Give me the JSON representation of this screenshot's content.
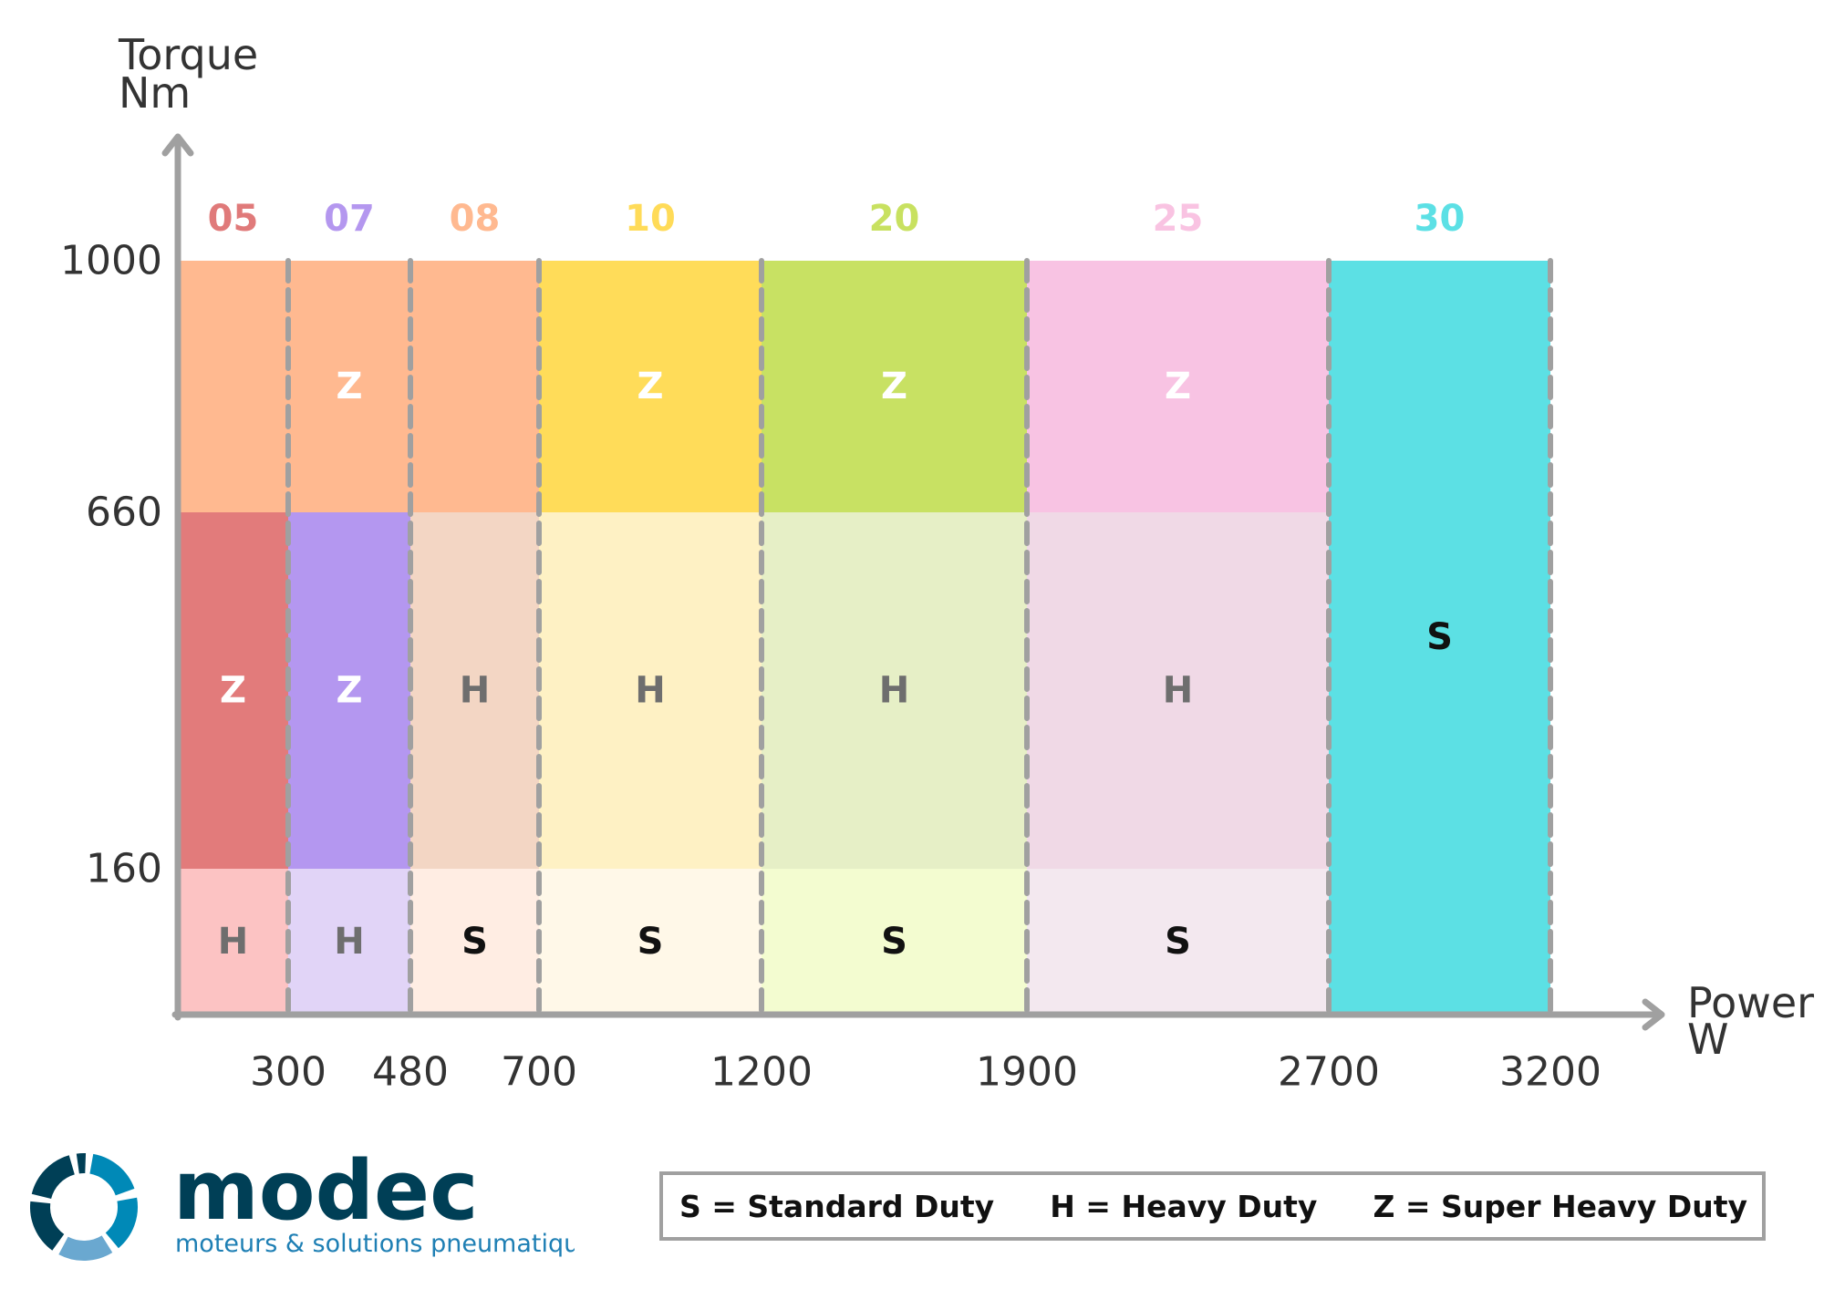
{
  "chart_data": {
    "type": "heatmap",
    "ylabel": [
      "Torque",
      "Nm"
    ],
    "xlabel": [
      "Power",
      "W"
    ],
    "x_ticks": [
      300,
      480,
      700,
      1200,
      1900,
      2700,
      3200
    ],
    "y_ticks": [
      160,
      660,
      1000
    ],
    "colors": {
      "axis": "#a0a0a0",
      "divider": "#a0a0a0",
      "white_text": "#ffffff",
      "gray_text": "#6e6e6e",
      "black_text": "#111111"
    },
    "series": [
      {
        "name": "05",
        "label_color": "#e07a7a",
        "x_range": [
          0,
          300
        ],
        "bands": [
          {
            "y_range": [
              0,
              160
            ],
            "label": "H",
            "color": "#fcc3c3",
            "text": "gray"
          },
          {
            "y_range": [
              160,
              660
            ],
            "label": "Z",
            "color": "#e27b7b",
            "text": "white"
          },
          {
            "y_range": [
              660,
              1000
            ],
            "label": "",
            "color": "#ffb990",
            "text": "white"
          }
        ]
      },
      {
        "name": "07",
        "label_color": "#b497ef",
        "x_range": [
          300,
          480
        ],
        "bands": [
          {
            "y_range": [
              0,
              160
            ],
            "label": "H",
            "color": "#e1d4f7",
            "text": "gray"
          },
          {
            "y_range": [
              160,
              660
            ],
            "label": "Z",
            "color": "#b497f0",
            "text": "white"
          },
          {
            "y_range": [
              660,
              1000
            ],
            "label": "Z",
            "color": "#ffb990",
            "text": "white"
          }
        ]
      },
      {
        "name": "08",
        "label_color": "#ffb990",
        "x_range": [
          480,
          700
        ],
        "bands": [
          {
            "y_range": [
              0,
              160
            ],
            "label": "S",
            "color": "#ffede3",
            "text": "black"
          },
          {
            "y_range": [
              160,
              660
            ],
            "label": "H",
            "color": "#f3d6c4",
            "text": "gray"
          },
          {
            "y_range": [
              660,
              1000
            ],
            "label": "",
            "color": "#ffb990",
            "text": "white"
          }
        ]
      },
      {
        "name": "10",
        "label_color": "#ffdb58",
        "x_range": [
          700,
          1200
        ],
        "bands": [
          {
            "y_range": [
              0,
              160
            ],
            "label": "S",
            "color": "#fff8e8",
            "text": "black"
          },
          {
            "y_range": [
              160,
              660
            ],
            "label": "H",
            "color": "#fef1c4",
            "text": "gray"
          },
          {
            "y_range": [
              660,
              1000
            ],
            "label": "Z",
            "color": "#ffdc59",
            "text": "white"
          }
        ]
      },
      {
        "name": "20",
        "label_color": "#c8e160",
        "x_range": [
          1200,
          1900
        ],
        "bands": [
          {
            "y_range": [
              0,
              160
            ],
            "label": "S",
            "color": "#f3fcd0",
            "text": "black"
          },
          {
            "y_range": [
              160,
              660
            ],
            "label": "H",
            "color": "#e6efc6",
            "text": "gray"
          },
          {
            "y_range": [
              660,
              1000
            ],
            "label": "Z",
            "color": "#c8e163",
            "text": "white"
          }
        ]
      },
      {
        "name": "25",
        "label_color": "#f9c3e2",
        "x_range": [
          1900,
          2700
        ],
        "bands": [
          {
            "y_range": [
              0,
              160
            ],
            "label": "S",
            "color": "#f3e8ef",
            "text": "black"
          },
          {
            "y_range": [
              160,
              660
            ],
            "label": "H",
            "color": "#f0d9e6",
            "text": "gray"
          },
          {
            "y_range": [
              660,
              1000
            ],
            "label": "Z",
            "color": "#f8c3e3",
            "text": "white"
          }
        ]
      },
      {
        "name": "30",
        "label_color": "#5ce0e5",
        "x_range": [
          2700,
          3200
        ],
        "bands": [
          {
            "y_range": [
              0,
              1000
            ],
            "label": "S",
            "color": "#5ce0e4",
            "text": "black"
          }
        ]
      }
    ]
  },
  "logo": {
    "brand": "modec",
    "tagline": "moteurs & solutions pneumatiques",
    "brand_color": "#003f56",
    "tagline_color": "#1e7fb4",
    "icon_colors": [
      "#0089b7",
      "#6aa8d0",
      "#003f56"
    ]
  },
  "legend": {
    "items": [
      {
        "text": "S = Standard Duty"
      },
      {
        "text": "H = Heavy Duty"
      },
      {
        "text": "Z = Super Heavy Duty"
      }
    ]
  }
}
